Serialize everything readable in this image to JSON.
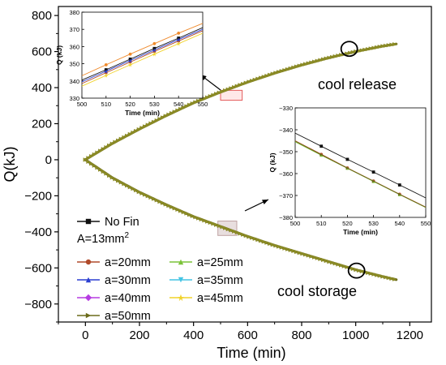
{
  "chart_data": [
    {
      "type": "line",
      "xlabel": "Time (min)",
      "ylabel": "Q(kJ)",
      "xlim": [
        -100,
        1280
      ],
      "ylim": [
        -900,
        850
      ],
      "xticks": [
        "0",
        "200",
        "400",
        "600",
        "800",
        "1000",
        "1200"
      ],
      "yticks": [
        "-800",
        "-600",
        "-400",
        "-200",
        "0",
        "200",
        "400",
        "600",
        "800"
      ],
      "legend_position": "bottom-left",
      "legend_entries": [
        "No Fin",
        "a=20mm",
        "a=25mm",
        "a=30mm",
        "a=35mm",
        "a=40mm",
        "a=45mm",
        "a=50mm"
      ],
      "legend_note": "A=13mm²",
      "legend_colors": [
        "#111111",
        "#b04a2a",
        "#7cc33a",
        "#2b3fd1",
        "#44c4e4",
        "#b63be2",
        "#f1d32c",
        "#6b6b1a"
      ],
      "x": [
        0,
        100,
        200,
        300,
        400,
        500,
        600,
        700,
        800,
        900,
        1000,
        1100,
        1150
      ],
      "series": [
        {
          "name": "cool release",
          "values": [
            0,
            90,
            170,
            245,
            315,
            375,
            430,
            480,
            525,
            565,
            600,
            630,
            642
          ]
        },
        {
          "name": "cool storage",
          "values": [
            0,
            -100,
            -180,
            -250,
            -315,
            -370,
            -425,
            -475,
            -520,
            -565,
            -610,
            -648,
            -665
          ]
        }
      ],
      "annotations": [
        "cool release",
        "cool storage"
      ],
      "highlight_regions": [
        {
          "x": [
            500,
            580
          ],
          "y": [
            330,
            385
          ]
        },
        {
          "x": [
            490,
            560
          ],
          "y": [
            -340,
            -420
          ]
        }
      ]
    },
    {
      "type": "line",
      "title": "",
      "xlabel": "Time (min)",
      "ylabel": "Q (kJ)",
      "xlim": [
        500,
        550
      ],
      "ylim": [
        330,
        380
      ],
      "xticks": [
        "500",
        "510",
        "520",
        "530",
        "540",
        "550"
      ],
      "yticks": [
        "330",
        "340",
        "350",
        "360",
        "370",
        "380"
      ],
      "x": [
        500,
        510,
        520,
        530,
        540,
        550
      ],
      "series": [
        {
          "name": "No Fin",
          "color": "#111111",
          "values": [
            340.5,
            346.5,
            352.7,
            358.9,
            364.9,
            371.0
          ]
        },
        {
          "name": "a=20mm",
          "color": "#b04a2a",
          "values": [
            338.5,
            344.8,
            351.0,
            357.2,
            363.2,
            369.2
          ]
        },
        {
          "name": "a=30mm",
          "color": "#2b3fd1",
          "values": [
            339.5,
            345.7,
            351.9,
            358.0,
            364.1,
            370.0
          ]
        },
        {
          "name": "a=45mm",
          "color": "#f1d32c",
          "values": [
            337.0,
            343.2,
            349.4,
            355.6,
            361.7,
            367.8
          ]
        },
        {
          "name": "cool release",
          "color": "#ef8a2c",
          "values": [
            343.0,
            349.4,
            355.6,
            361.7,
            367.8,
            373.5
          ]
        }
      ]
    },
    {
      "type": "line",
      "title": "",
      "xlabel": "Time (min)",
      "ylabel": "Q (kJ)",
      "xlim": [
        500,
        550
      ],
      "ylim": [
        -380,
        -330
      ],
      "xticks": [
        "500",
        "510",
        "520",
        "530",
        "540",
        "550"
      ],
      "yticks": [
        "-330",
        "-340",
        "-350",
        "-360",
        "-370",
        "-380"
      ],
      "x": [
        500,
        510,
        520,
        530,
        540,
        550
      ],
      "series": [
        {
          "name": "No Fin",
          "color": "#111111",
          "values": [
            -341.5,
            -347.5,
            -353.5,
            -359.3,
            -365.2,
            -371.1
          ]
        },
        {
          "name": "a=20mm",
          "color": "#b04a2a",
          "values": [
            -345.0,
            -351.2,
            -357.4,
            -363.4,
            -369.4,
            -375.3
          ]
        },
        {
          "name": "a=25mm",
          "color": "#7cc33a",
          "values": [
            -345.5,
            -351.6,
            -357.6,
            -363.6,
            -369.6,
            -375.5
          ]
        },
        {
          "name": "a=50mm",
          "color": "#6b6b1a",
          "values": [
            -345.2,
            -351.4,
            -357.5,
            -363.5,
            -369.5,
            -375.4
          ]
        }
      ]
    }
  ]
}
